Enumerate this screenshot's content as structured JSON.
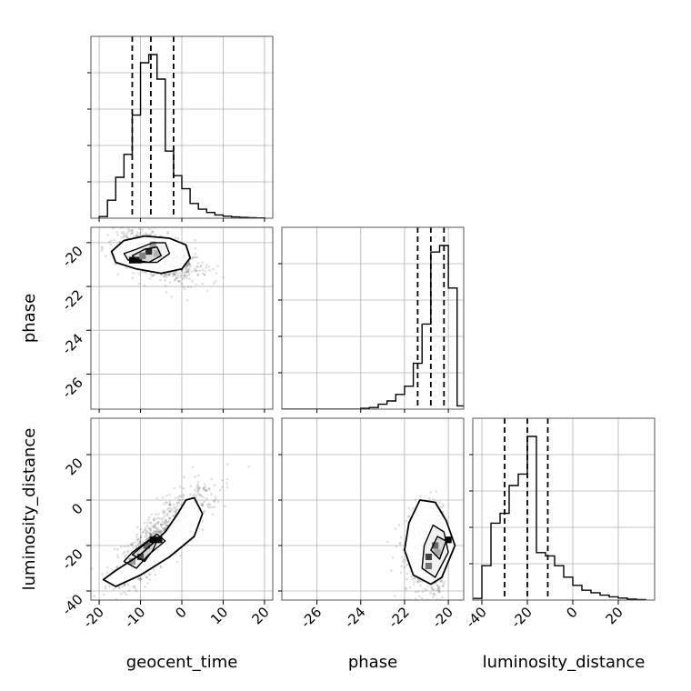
{
  "chart_data": {
    "type": "corner",
    "grid": true,
    "variables": [
      "geocent_time",
      "phase",
      "luminosity_distance"
    ],
    "axis_labels": {
      "x_bottom": [
        "geocent_time",
        "phase",
        "luminosity_distance"
      ],
      "y_left": [
        "",
        "phase",
        "luminosity_distance"
      ]
    },
    "ranges": {
      "geocent_time": [
        -22,
        22
      ],
      "phase": [
        -27.6,
        -19.3
      ],
      "luminosity_distance": [
        -44,
        36
      ]
    },
    "ticks": {
      "geocent_time": [
        -20,
        -10,
        0,
        10,
        20
      ],
      "phase": [
        -26,
        -24,
        -22,
        -20
      ],
      "luminosity_distance": [
        -40,
        -20,
        0,
        20
      ]
    },
    "histograms": [
      {
        "variable": "geocent_time",
        "bin_edges": [
          -20,
          -18,
          -16,
          -14,
          -12,
          -10,
          -8,
          -6,
          -4,
          -2,
          0,
          2,
          4,
          6,
          8,
          10,
          12,
          14,
          16,
          18,
          20
        ],
        "counts": [
          0.01,
          0.11,
          0.25,
          0.39,
          0.63,
          0.95,
          1.0,
          0.85,
          0.41,
          0.26,
          0.18,
          0.09,
          0.055,
          0.035,
          0.02,
          0.012,
          0.008,
          0.005,
          0.003,
          0.002
        ],
        "quantiles": [
          -12,
          -7.5,
          -2
        ]
      },
      {
        "variable": "phase",
        "bin_edges": [
          -27.6,
          -27.2,
          -26.8,
          -26.4,
          -26.0,
          -25.6,
          -25.2,
          -24.8,
          -24.4,
          -24.0,
          -23.6,
          -23.2,
          -22.8,
          -22.4,
          -22.0,
          -21.6,
          -21.2,
          -20.8,
          -20.4,
          -20.0,
          -19.6,
          -19.2
        ],
        "counts": [
          0,
          0,
          0,
          0,
          0,
          0,
          0,
          0,
          0,
          0.005,
          0.01,
          0.03,
          0.05,
          0.09,
          0.14,
          0.28,
          0.52,
          0.96,
          1.0,
          0.74,
          0.02
        ],
        "quantiles": [
          -21.4,
          -20.8,
          -20.2
        ]
      },
      {
        "variable": "luminosity_distance",
        "bin_edges": [
          -44,
          -40,
          -36,
          -32,
          -28,
          -24,
          -20,
          -16,
          -12,
          -8,
          -4,
          0,
          4,
          8,
          12,
          16,
          20,
          24,
          28,
          32
        ],
        "counts": [
          0.01,
          0.21,
          0.47,
          0.53,
          0.7,
          0.77,
          1.0,
          0.29,
          0.27,
          0.21,
          0.14,
          0.09,
          0.06,
          0.045,
          0.03,
          0.02,
          0.012,
          0.006,
          0.003
        ],
        "quantiles": [
          -30,
          -20,
          -11
        ]
      }
    ],
    "joint_panels": [
      {
        "x": "geocent_time",
        "y": "phase",
        "center": [
          -6,
          -20.6
        ],
        "spread": [
          5,
          0.9
        ],
        "contours": [
          [
            [
              -17,
              -20.4
            ],
            [
              -14,
              -19.9
            ],
            [
              -9,
              -19.7
            ],
            [
              -3,
              -19.8
            ],
            [
              1,
              -20.1
            ],
            [
              2,
              -20.7
            ],
            [
              0,
              -21.2
            ],
            [
              -5,
              -21.4
            ],
            [
              -11,
              -21.2
            ],
            [
              -16,
              -20.9
            ]
          ],
          [
            [
              -14,
              -20.5
            ],
            [
              -11,
              -20.3
            ],
            [
              -7,
              -20.0
            ],
            [
              -4,
              -20.0
            ],
            [
              -3,
              -20.5
            ],
            [
              -6,
              -20.9
            ],
            [
              -10,
              -20.9
            ],
            [
              -13,
              -20.8
            ]
          ],
          [
            [
              -12,
              -20.6
            ],
            [
              -9,
              -20.3
            ],
            [
              -6,
              -20.2
            ],
            [
              -5,
              -20.6
            ],
            [
              -8,
              -20.9
            ],
            [
              -11,
              -20.8
            ]
          ]
        ],
        "density_cells": [
          [
            -12,
            -20.8,
            1.0
          ],
          [
            -10.5,
            -20.8,
            0.9
          ],
          [
            -8,
            -20.4,
            0.85
          ],
          [
            -7,
            -20.1,
            0.4
          ],
          [
            -9.5,
            -20.6,
            0.5
          ],
          [
            -6,
            -20.5,
            0.3
          ]
        ]
      },
      {
        "x": "geocent_time",
        "y": "luminosity_distance",
        "center": [
          -5,
          -16
        ],
        "spread": [
          6,
          11
        ],
        "contours": [
          [
            [
              -19,
              -35
            ],
            [
              -16,
              -38
            ],
            [
              -10,
              -33
            ],
            [
              -3,
              -25
            ],
            [
              3,
              -16
            ],
            [
              5,
              -6
            ],
            [
              3,
              1
            ],
            [
              1,
              0
            ],
            [
              -1,
              -6
            ],
            [
              -4,
              -14
            ],
            [
              -10,
              -24
            ],
            [
              -16,
              -31
            ]
          ],
          [
            [
              -14,
              -27
            ],
            [
              -11,
              -30
            ],
            [
              -8,
              -24
            ],
            [
              -4,
              -18
            ],
            [
              -6,
              -15
            ],
            [
              -9,
              -19
            ],
            [
              -12,
              -23
            ]
          ],
          [
            [
              -12,
              -24
            ],
            [
              -9,
              -27
            ],
            [
              -7,
              -22
            ],
            [
              -6,
              -18
            ],
            [
              -8,
              -18
            ],
            [
              -10,
              -21
            ]
          ]
        ],
        "density_cells": [
          [
            -7,
            -17.5,
            1.0
          ],
          [
            -5.5,
            -17.5,
            0.95
          ],
          [
            -8.5,
            -20,
            0.6
          ],
          [
            -10,
            -25,
            0.7
          ],
          [
            -12,
            -27,
            0.4
          ]
        ]
      },
      {
        "x": "phase",
        "y": "luminosity_distance",
        "center": [
          -20.5,
          -22
        ],
        "spread": [
          0.8,
          9
        ],
        "contours": [
          [
            [
              -21.6,
              -33
            ],
            [
              -20.8,
              -37
            ],
            [
              -20.3,
              -34
            ],
            [
              -19.7,
              -20
            ],
            [
              -20.1,
              -9
            ],
            [
              -20.6,
              -1
            ],
            [
              -21.3,
              0
            ],
            [
              -21.8,
              -10
            ],
            [
              -22.0,
              -22
            ]
          ],
          [
            [
              -21.2,
              -30
            ],
            [
              -20.6,
              -34
            ],
            [
              -20.0,
              -23
            ],
            [
              -20.2,
              -14
            ],
            [
              -20.7,
              -11
            ],
            [
              -21.1,
              -20
            ]
          ],
          [
            [
              -20.8,
              -22
            ],
            [
              -20.4,
              -26
            ],
            [
              -20.1,
              -18
            ],
            [
              -20.5,
              -16
            ]
          ]
        ],
        "density_cells": [
          [
            -20.0,
            -17.5,
            1.0
          ],
          [
            -20.6,
            -20,
            0.6
          ],
          [
            -20.9,
            -25,
            0.75
          ],
          [
            -20.9,
            -29,
            0.55
          ],
          [
            -20.5,
            -23,
            0.35
          ]
        ]
      }
    ]
  }
}
